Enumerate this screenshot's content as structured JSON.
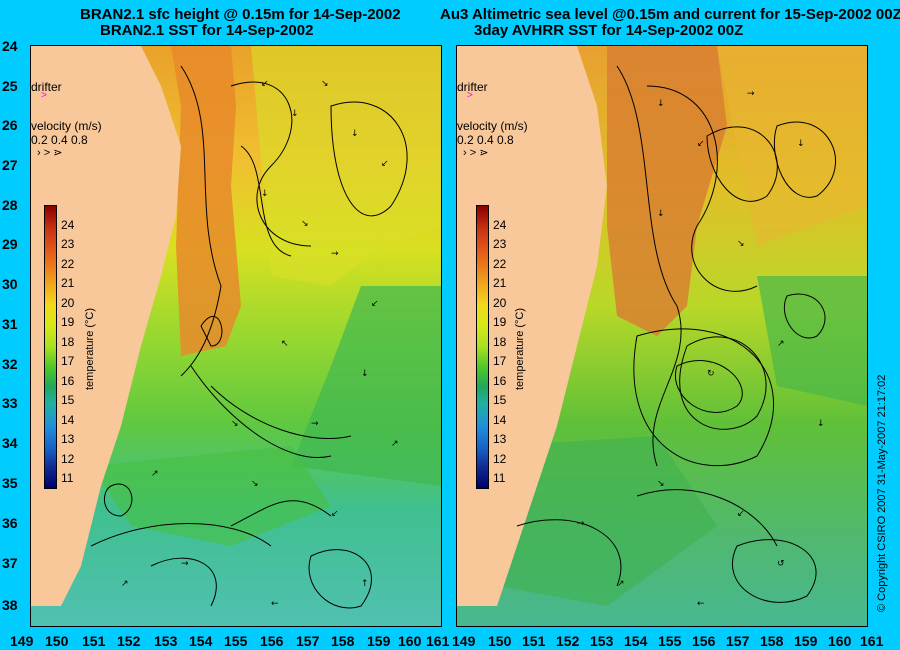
{
  "left_panel": {
    "title_line1": "BRAN2.1 sfc height @ 0.15m for 14-Sep-2002",
    "title_line2": "BRAN2.1 SST for 14-Sep-2002"
  },
  "right_panel": {
    "title_line1": "Au3 Altimetric sea level  @0.15m and current for 15-Sep-2002 00Z",
    "title_line2": "3day AVHRR SST for 14-Sep-2002 00Z"
  },
  "legend": {
    "drifter_label": "drifter",
    "velocity_label": "velocity (m/s)",
    "velocity_scale": "0.2 0.4 0.8",
    "colorbar_label": "temperature (°C)",
    "colorbar_ticks": [
      "24",
      "23",
      "22",
      "21",
      "20",
      "19",
      "18",
      "17",
      "16",
      "15",
      "14",
      "13",
      "12",
      "11"
    ]
  },
  "axes": {
    "latitude_labels": [
      "24",
      "25",
      "26",
      "27",
      "28",
      "29",
      "30",
      "31",
      "32",
      "33",
      "34",
      "35",
      "36",
      "37",
      "38"
    ],
    "longitude_labels": [
      "149",
      "150",
      "151",
      "152",
      "153",
      "154",
      "155",
      "156",
      "157",
      "158",
      "159",
      "160",
      "161"
    ],
    "right_lon_labels": [
      "149",
      "150",
      "151",
      "152",
      "153",
      "154",
      "155",
      "156",
      "157",
      "158",
      "159",
      "160",
      "161"
    ]
  },
  "copyright": "© Copyright CSIRO 2007   31-May-2007 21:17:02",
  "colors": {
    "background": "#00ccff",
    "land": "#f8c89a",
    "drifter_marker": "#ff00ff"
  }
}
